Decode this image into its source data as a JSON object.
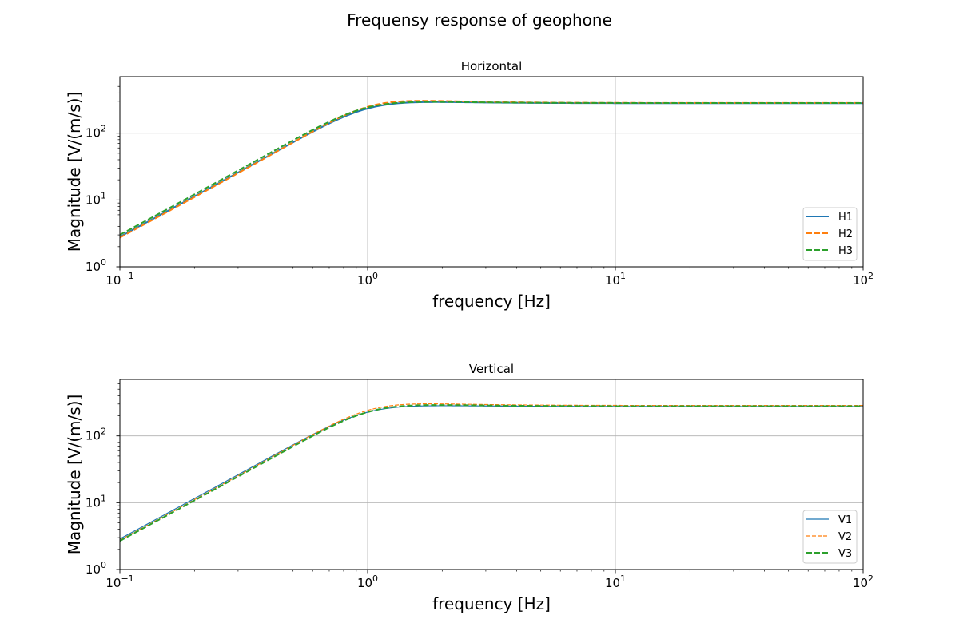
{
  "chart_data": {
    "title": "Frequensy response of geophone",
    "panels": [
      {
        "type": "line",
        "title": "Horizontal",
        "xlabel": "frequency [Hz]",
        "ylabel": "Magnitude [V/(m/s)]",
        "xscale": "log",
        "yscale": "log",
        "xlim": [
          0.1,
          100
        ],
        "ylim": [
          1,
          700
        ],
        "xticks": [
          {
            "value": 0.1,
            "base": "10",
            "exp": "−1"
          },
          {
            "value": 1,
            "base": "10",
            "exp": "0"
          },
          {
            "value": 10,
            "base": "10",
            "exp": "1"
          },
          {
            "value": 100,
            "base": "10",
            "exp": "2"
          }
        ],
        "yticks": [
          {
            "value": 1,
            "base": "10",
            "exp": "0"
          },
          {
            "value": 10,
            "base": "10",
            "exp": "1"
          },
          {
            "value": 100,
            "base": "10",
            "exp": "2"
          }
        ],
        "grid": true,
        "legend_position": "lower-right",
        "series": [
          {
            "name": "H1",
            "style": "solid",
            "color": "#1f77b4",
            "f0": 1.0,
            "h": 0.6,
            "g": 280
          },
          {
            "name": "H2",
            "style": "dashed",
            "color": "#ff7f0e",
            "f0": 1.02,
            "h": 0.56,
            "g": 283
          },
          {
            "name": "H3",
            "style": "dashed",
            "color": "#2ca02c",
            "f0": 0.97,
            "h": 0.6,
            "g": 282
          }
        ]
      },
      {
        "type": "line",
        "title": "Vertical",
        "xlabel": "frequency [Hz]",
        "ylabel": "Magnitude [V/(m/s)]",
        "xscale": "log",
        "yscale": "log",
        "xlim": [
          0.1,
          100
        ],
        "ylim": [
          1,
          700
        ],
        "xticks": [
          {
            "value": 0.1,
            "base": "10",
            "exp": "−1"
          },
          {
            "value": 1,
            "base": "10",
            "exp": "0"
          },
          {
            "value": 10,
            "base": "10",
            "exp": "1"
          },
          {
            "value": 100,
            "base": "10",
            "exp": "2"
          }
        ],
        "yticks": [
          {
            "value": 1,
            "base": "10",
            "exp": "0"
          },
          {
            "value": 10,
            "base": "10",
            "exp": "1"
          },
          {
            "value": 100,
            "base": "10",
            "exp": "2"
          }
        ],
        "grid": true,
        "legend_position": "lower-right",
        "series": [
          {
            "name": "V1",
            "style": "thin-solid",
            "color": "#1f77b4",
            "f0": 0.98,
            "h": 0.62,
            "g": 275
          },
          {
            "name": "V2",
            "style": "thin-dashed",
            "color": "#ff7f0e",
            "f0": 1.02,
            "h": 0.58,
            "g": 285
          },
          {
            "name": "V3",
            "style": "dashed",
            "color": "#2ca02c",
            "f0": 1.02,
            "h": 0.6,
            "g": 278
          }
        ]
      }
    ]
  }
}
